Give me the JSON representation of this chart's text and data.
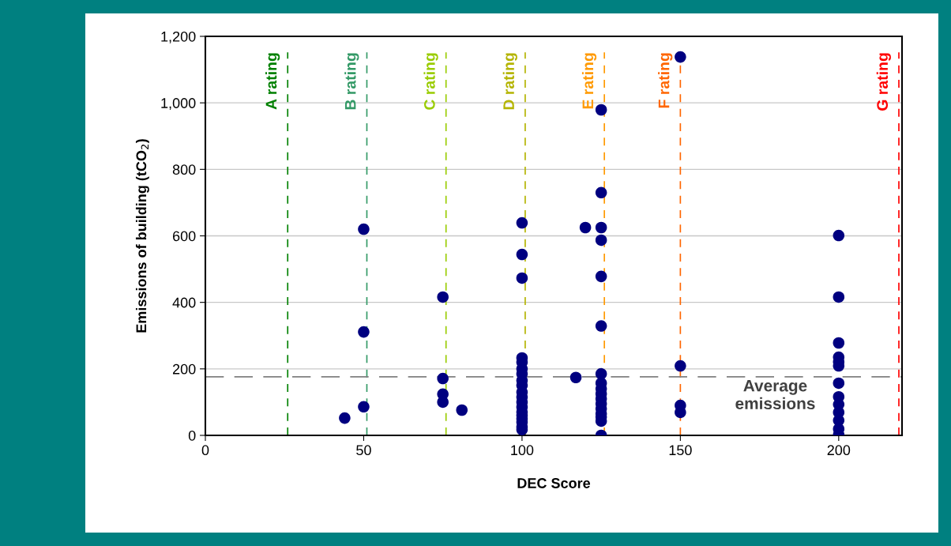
{
  "chart_data": {
    "type": "scatter",
    "xlabel": "DEC Score",
    "ylabel": "Emissions of building (tCO$_{2}$)",
    "series": [
      {
        "color": "#000080",
        "x": [
          44,
          50,
          50,
          50,
          75,
          75,
          75,
          75,
          81,
          100,
          100,
          100,
          100,
          100,
          100,
          100,
          100,
          100,
          100,
          100,
          100,
          100,
          100,
          100,
          100,
          100,
          100,
          100,
          117,
          120,
          125,
          125,
          125,
          125,
          125,
          125,
          125,
          125,
          125,
          125,
          125,
          125,
          125,
          125,
          125,
          125,
          125,
          150,
          150,
          150,
          150,
          200,
          200,
          200,
          200,
          200,
          200,
          200,
          200,
          200,
          200,
          200,
          200,
          200
        ],
        "values": [
          52,
          620,
          311,
          86,
          416,
          171,
          124,
          100,
          76,
          639,
          544,
          473,
          233,
          220,
          200,
          185,
          165,
          150,
          130,
          115,
          100,
          85,
          70,
          60,
          50,
          40,
          25,
          17,
          174,
          625,
          979,
          730,
          625,
          587,
          478,
          329,
          185,
          157,
          140,
          125,
          110,
          95,
          80,
          65,
          55,
          43,
          0,
          1138,
          209,
          90,
          69,
          601,
          416,
          278,
          235,
          221,
          209,
          157,
          116,
          93,
          69,
          45,
          19,
          2
        ]
      }
    ],
    "marker": "circle",
    "xlim": [
      0,
      220
    ],
    "xticks": [
      0,
      50,
      100,
      150,
      200
    ],
    "ylim": [
      0,
      1200
    ],
    "yticks": [
      0,
      200,
      400,
      600,
      800,
      {
        "value": 1000,
        "label": "1,000"
      },
      {
        "value": 1200,
        "label": "1,200"
      }
    ],
    "grid": "y",
    "ref_lines": [
      {
        "axis": "x",
        "value": 26,
        "label": "A rating",
        "color": "#008000",
        "line_style": "dashed"
      },
      {
        "axis": "x",
        "value": 51,
        "label": "B rating",
        "color": "#339966",
        "line_style": "dashed"
      },
      {
        "axis": "x",
        "value": 76,
        "label": "C rating",
        "color": "#99cc00",
        "line_style": "dashed"
      },
      {
        "axis": "x",
        "value": 101,
        "label": "D rating",
        "color": "#b4b400",
        "line_style": "dashed"
      },
      {
        "axis": "x",
        "value": 126,
        "label": "E rating",
        "color": "#ff9900",
        "line_style": "dashed"
      },
      {
        "axis": "x",
        "value": 150,
        "label": "F rating",
        "color": "#ff6600",
        "line_style": "dashed"
      },
      {
        "axis": "x",
        "value": 219,
        "label": "G rating",
        "color": "#ff0000",
        "line_style": "dashed"
      },
      {
        "axis": "y",
        "value": 176,
        "label": "Average\nemissions",
        "color": "#808080",
        "line_style": "dashed"
      }
    ]
  }
}
